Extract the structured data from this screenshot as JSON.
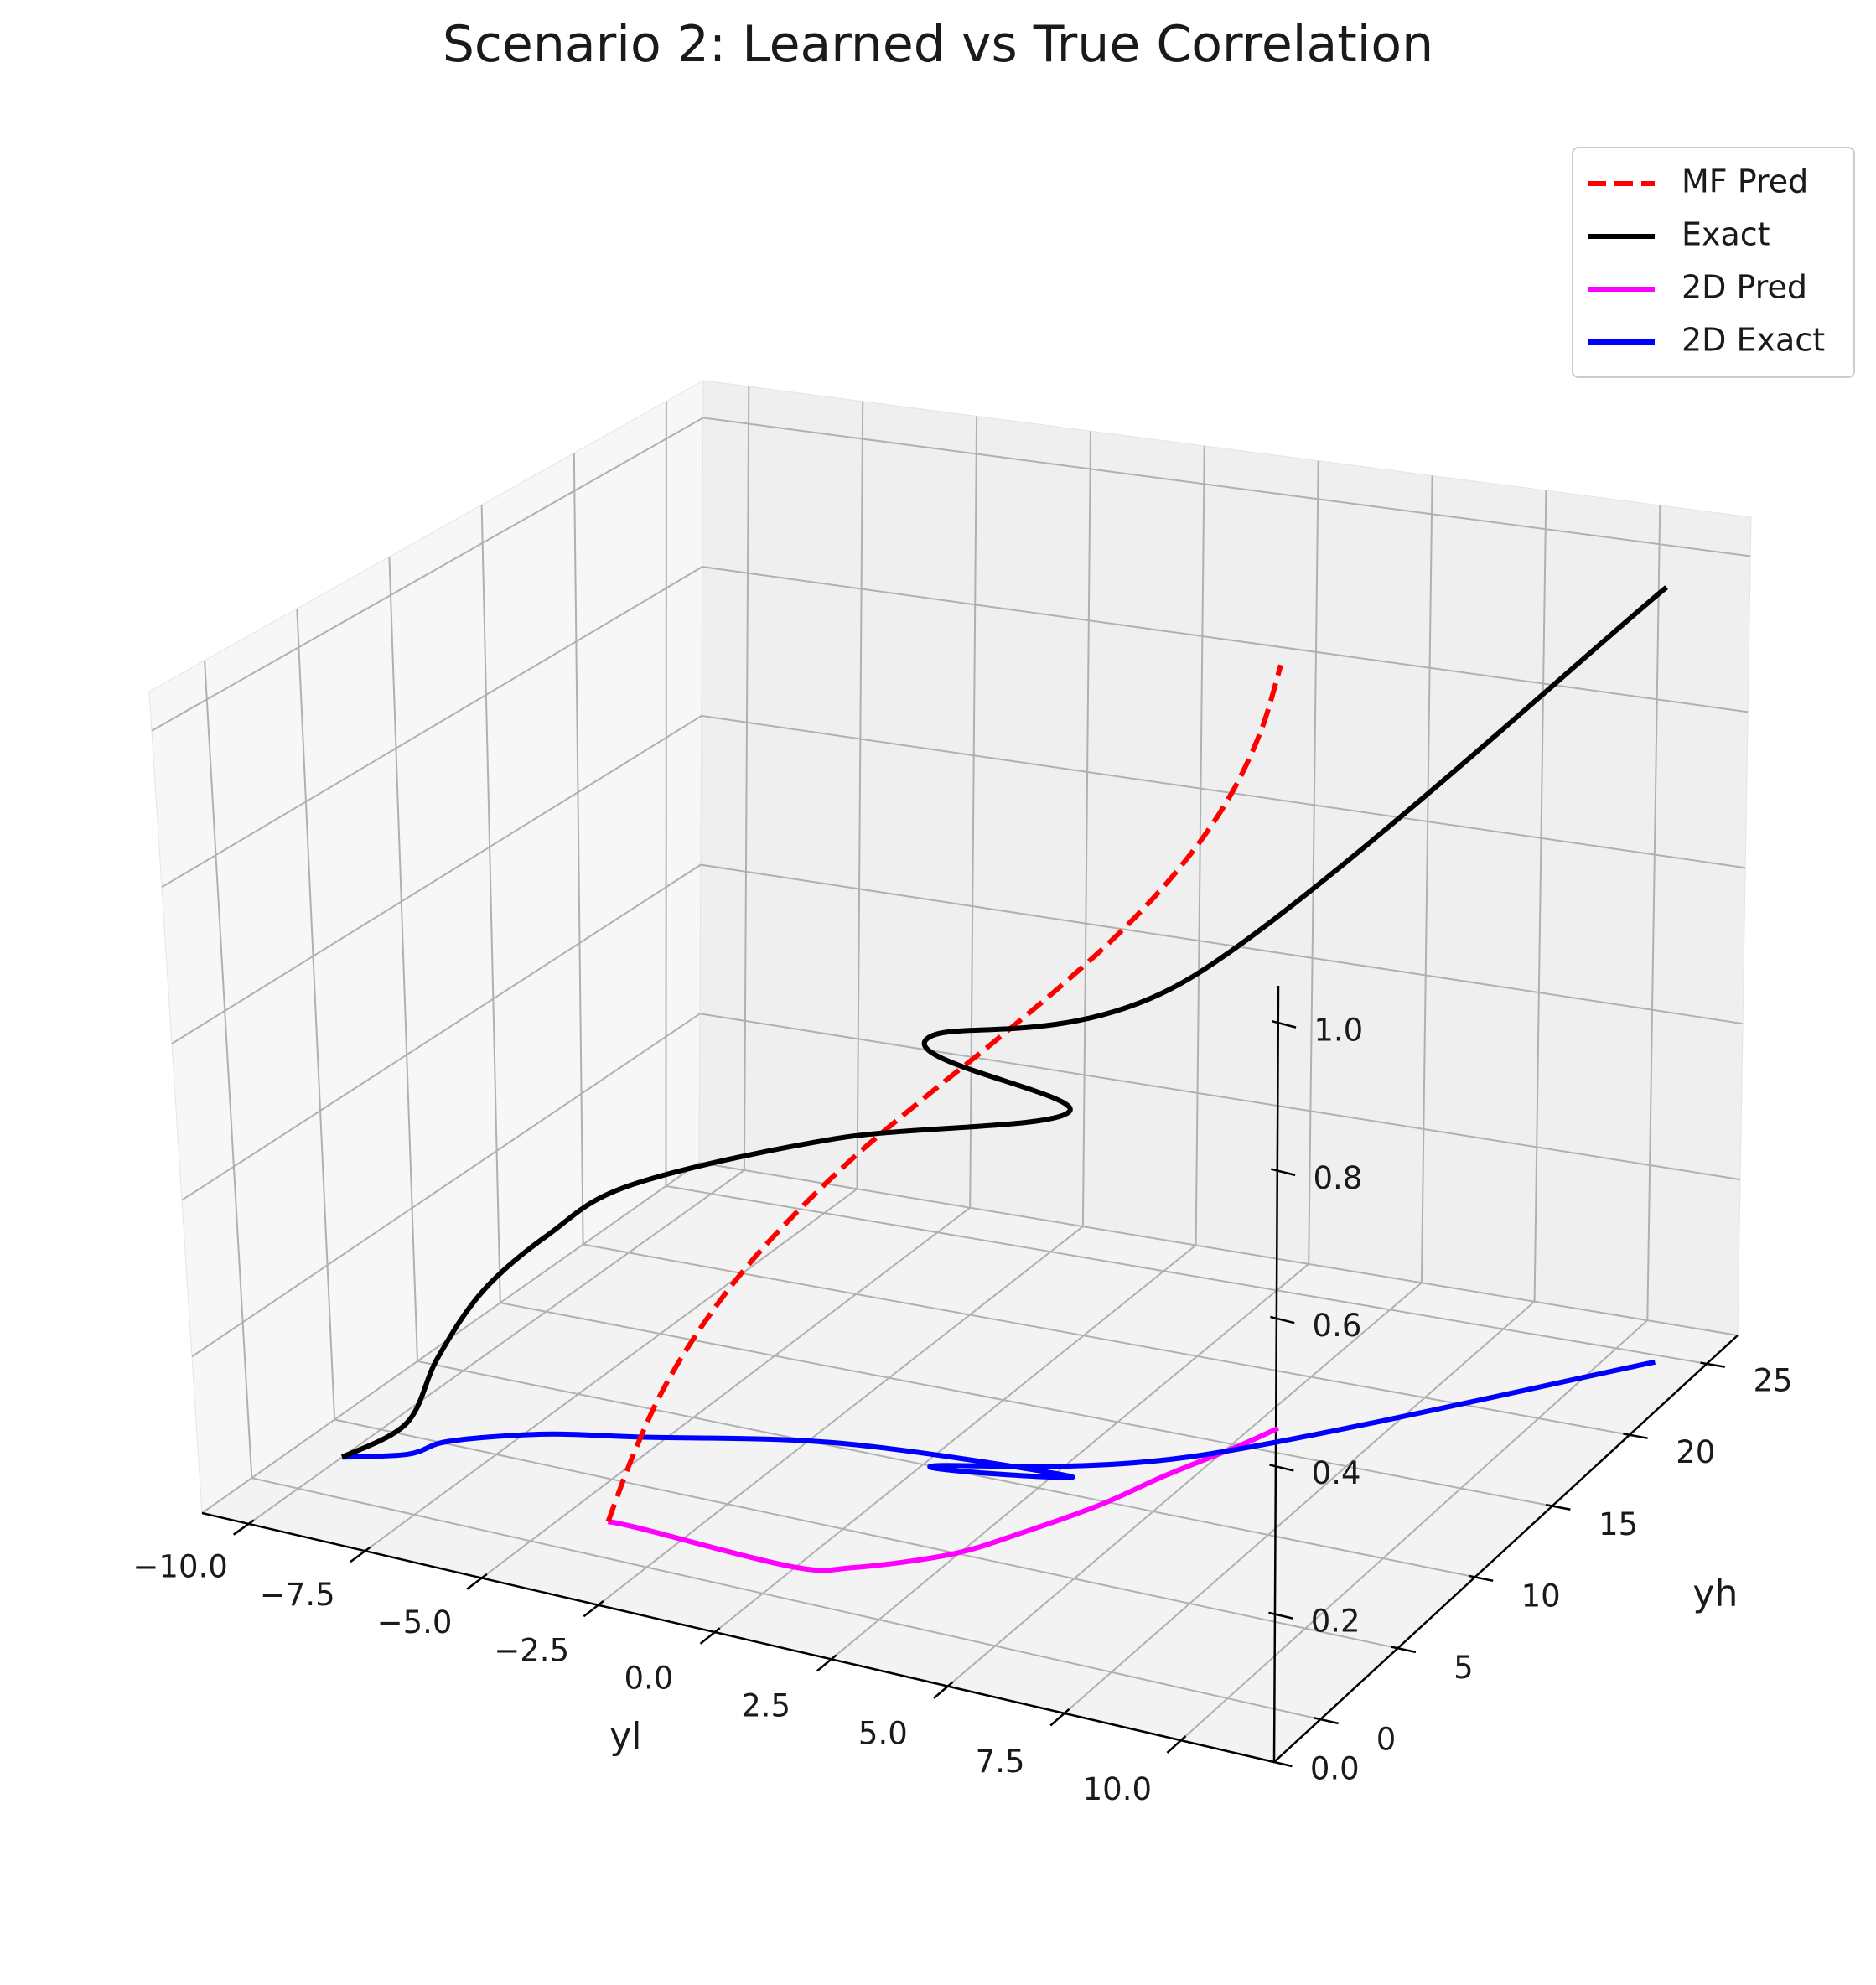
{
  "chart_data": {
    "type": "line",
    "projection": "3d",
    "title": "Scenario 2: Learned vs True Correlation",
    "xlabel": "yl",
    "ylabel": "yh",
    "zlabel": "",
    "xlim": [
      -11,
      12
    ],
    "ylim": [
      -3,
      27
    ],
    "zlim": [
      0,
      1.05
    ],
    "xticks": [
      -10,
      -7.5,
      -5,
      -2.5,
      0,
      2.5,
      5,
      7.5,
      10
    ],
    "xtick_labels": [
      "−10.0",
      "−7.5",
      "−5.0",
      "−2.5",
      "0.0",
      "2.5",
      "5.0",
      "7.5",
      "10.0"
    ],
    "yticks": [
      0,
      5,
      10,
      15,
      20,
      25
    ],
    "ytick_labels": [
      "0",
      "5",
      "10",
      "15",
      "20",
      "25"
    ],
    "zticks": [
      0,
      0.2,
      0.4,
      0.6,
      0.8,
      1.0
    ],
    "ztick_labels": [
      "0.0",
      "0.2",
      "0.4",
      "0.6",
      "0.8",
      "1.0"
    ],
    "grid": true,
    "legend_position": "top-right",
    "series": [
      {
        "name": "MF Pred",
        "color": "#ff0000",
        "style": "dashed",
        "x": [
          -4.13,
          -3.92,
          -3.61,
          -3.13,
          -2.48,
          -1.66,
          -0.69,
          0.41,
          1.56,
          2.68,
          3.68,
          4.5,
          5.08,
          5.4,
          5.49
        ],
        "y": [
          2.29,
          3.3,
          4.31,
          5.33,
          6.35,
          7.37,
          8.39,
          9.41,
          10.42,
          11.44,
          12.46,
          13.48,
          14.5,
          15.52,
          16.5
        ],
        "z": [
          0.0,
          0.071,
          0.143,
          0.214,
          0.286,
          0.357,
          0.429,
          0.5,
          0.571,
          0.643,
          0.714,
          0.786,
          0.857,
          0.929,
          1.0
        ]
      },
      {
        "name": "Exact",
        "color": "#000000",
        "style": "solid",
        "x": [
          -10.0,
          -8.98,
          -8.69,
          -8.03,
          -6.98,
          -5.48,
          -1.87,
          2.85,
          0.18,
          4.56,
          11.0
        ],
        "y": [
          2.66,
          3.78,
          4.98,
          6.0,
          7.1,
          8.04,
          10.28,
          11.1,
          10.0,
          13.8,
          24.58
        ],
        "z": [
          0.0,
          0.04,
          0.11,
          0.19,
          0.26,
          0.33,
          0.4,
          0.48,
          0.56,
          0.63,
          1.0
        ]
      },
      {
        "name": "2D Pred",
        "color": "#ff00ff",
        "style": "solid",
        "x": [
          -4.13,
          -3.46,
          -0.06,
          1.0,
          2.38,
          3.16,
          3.93,
          4.46,
          5.14,
          5.49
        ],
        "y": [
          2.29,
          2.31,
          2.02,
          2.8,
          4.87,
          7.1,
          9.72,
          12.26,
          14.9,
          16.5
        ],
        "z": [
          0,
          0,
          0,
          0,
          0,
          0,
          0,
          0,
          0,
          0
        ]
      },
      {
        "name": "2D Exact",
        "color": "#0000ff",
        "style": "solid",
        "x": [
          -10.0,
          -8.98,
          -8.69,
          -8.03,
          -6.98,
          -5.48,
          -1.87,
          2.85,
          0.18,
          4.56,
          11.0
        ],
        "y": [
          2.66,
          3.78,
          4.98,
          6.0,
          7.1,
          8.04,
          10.28,
          11.1,
          10.0,
          13.8,
          24.58
        ],
        "z": [
          0,
          0,
          0,
          0,
          0,
          0,
          0,
          0,
          0,
          0,
          0
        ]
      }
    ]
  }
}
